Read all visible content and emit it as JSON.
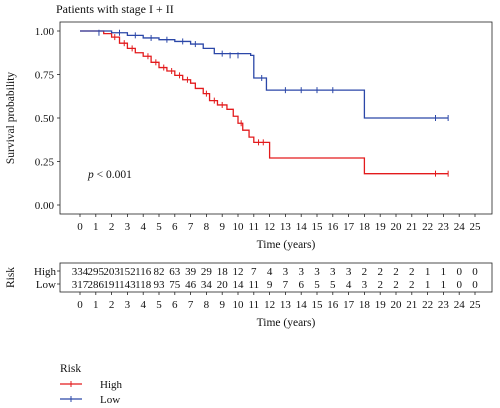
{
  "chart_data": {
    "type": "line",
    "subtype": "kaplan-meier",
    "title": "Patients with stage I + II",
    "xlabel": "Time (years)",
    "ylabel": "Survival probability",
    "xlim": [
      0,
      25
    ],
    "ylim": [
      0,
      1
    ],
    "xticks": [
      "0",
      "1",
      "2",
      "3",
      "4",
      "5",
      "6",
      "7",
      "8",
      "9",
      "10",
      "11",
      "12",
      "13",
      "14",
      "15",
      "16",
      "17",
      "18",
      "19",
      "20",
      "21",
      "22",
      "23",
      "24",
      "25"
    ],
    "yticks": [
      "0.00",
      "0.25",
      "0.50",
      "0.75",
      "1.00"
    ],
    "annotation_p": "p",
    "annotation_rest": " < 0.001",
    "grid": false,
    "legend": {
      "title": "Risk",
      "position": "bottom-left",
      "entries": [
        "High",
        "Low"
      ]
    },
    "series": [
      {
        "name": "High",
        "color": "#e31a1c",
        "steps": [
          [
            0,
            1.0
          ],
          [
            1.5,
            0.985
          ],
          [
            2.0,
            0.965
          ],
          [
            2.5,
            0.93
          ],
          [
            3.0,
            0.9
          ],
          [
            3.5,
            0.875
          ],
          [
            4.0,
            0.855
          ],
          [
            4.5,
            0.82
          ],
          [
            5.0,
            0.79
          ],
          [
            5.5,
            0.77
          ],
          [
            6.0,
            0.745
          ],
          [
            6.5,
            0.72
          ],
          [
            7.0,
            0.7
          ],
          [
            7.3,
            0.67
          ],
          [
            7.8,
            0.64
          ],
          [
            8.2,
            0.6
          ],
          [
            8.7,
            0.575
          ],
          [
            9.3,
            0.55
          ],
          [
            9.7,
            0.51
          ],
          [
            10.0,
            0.47
          ],
          [
            10.3,
            0.43
          ],
          [
            10.7,
            0.39
          ],
          [
            11.0,
            0.36
          ],
          [
            12.0,
            0.27
          ],
          [
            18.0,
            0.18
          ],
          [
            23.3,
            0.18
          ]
        ],
        "censors": [
          [
            2.2,
            0.965
          ],
          [
            2.8,
            0.93
          ],
          [
            3.3,
            0.9
          ],
          [
            4.3,
            0.855
          ],
          [
            4.8,
            0.82
          ],
          [
            5.3,
            0.79
          ],
          [
            5.8,
            0.77
          ],
          [
            6.3,
            0.745
          ],
          [
            6.8,
            0.72
          ],
          [
            8.0,
            0.64
          ],
          [
            8.5,
            0.6
          ],
          [
            9.0,
            0.575
          ],
          [
            10.2,
            0.47
          ],
          [
            11.3,
            0.36
          ],
          [
            11.6,
            0.36
          ],
          [
            22.5,
            0.18
          ],
          [
            23.3,
            0.18
          ]
        ]
      },
      {
        "name": "Low",
        "color": "#2b47a8",
        "steps": [
          [
            0,
            1.0
          ],
          [
            2.0,
            0.99
          ],
          [
            3.0,
            0.975
          ],
          [
            4.0,
            0.96
          ],
          [
            5.0,
            0.95
          ],
          [
            6.0,
            0.94
          ],
          [
            7.0,
            0.925
          ],
          [
            7.8,
            0.9
          ],
          [
            8.5,
            0.87
          ],
          [
            10.8,
            0.86
          ],
          [
            11.0,
            0.73
          ],
          [
            11.8,
            0.66
          ],
          [
            18.0,
            0.5
          ],
          [
            23.3,
            0.5
          ]
        ],
        "censors": [
          [
            1.2,
            0.99
          ],
          [
            2.5,
            0.99
          ],
          [
            3.5,
            0.975
          ],
          [
            4.5,
            0.96
          ],
          [
            5.5,
            0.95
          ],
          [
            6.5,
            0.94
          ],
          [
            7.3,
            0.925
          ],
          [
            9.0,
            0.87
          ],
          [
            9.5,
            0.86
          ],
          [
            10.0,
            0.86
          ],
          [
            11.5,
            0.73
          ],
          [
            13.0,
            0.66
          ],
          [
            14.0,
            0.66
          ],
          [
            15.0,
            0.66
          ],
          [
            16.0,
            0.66
          ],
          [
            22.5,
            0.5
          ],
          [
            23.3,
            0.5
          ]
        ]
      }
    ]
  },
  "risk_table": {
    "title": "Risk",
    "xlabel": "Time (years)",
    "rows": [
      {
        "label": "High",
        "values": [
          "334",
          "295",
          "203",
          "152",
          "116",
          "82",
          "63",
          "39",
          "29",
          "18",
          "12",
          "7",
          "4",
          "3",
          "3",
          "3",
          "3",
          "3",
          "2",
          "2",
          "2",
          "2",
          "1",
          "1",
          "0",
          "0"
        ]
      },
      {
        "label": "Low",
        "values": [
          "317",
          "286",
          "191",
          "143",
          "118",
          "93",
          "75",
          "46",
          "34",
          "20",
          "14",
          "11",
          "9",
          "7",
          "6",
          "5",
          "5",
          "4",
          "3",
          "2",
          "2",
          "2",
          "1",
          "1",
          "0",
          "0"
        ]
      }
    ]
  }
}
